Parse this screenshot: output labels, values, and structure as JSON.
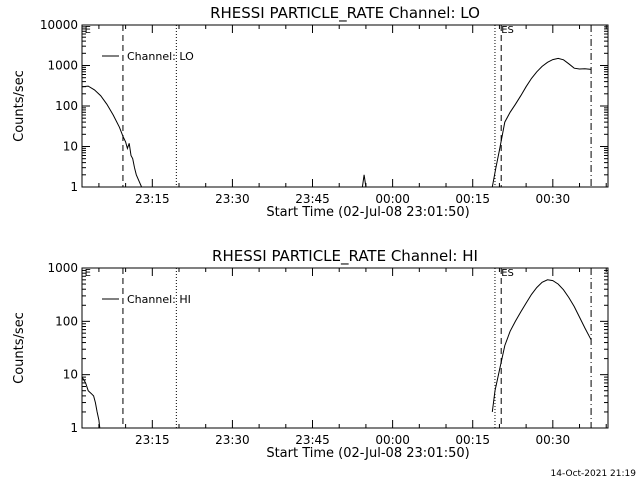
{
  "footer": {
    "timestamp": "14-Oct-2021 21:19"
  },
  "chart_data": [
    {
      "type": "line",
      "title": "RHESSI PARTICLE_RATE Channel: LO",
      "xlabel": "Start Time (02-Jul-08 23:01:50)",
      "ylabel": "Counts/sec",
      "y_scale": "log",
      "ylim": [
        1,
        10000
      ],
      "y_ticks": [
        1,
        10,
        100,
        1000,
        10000
      ],
      "y_tick_labels": [
        "1",
        "10",
        "100",
        "1000",
        "10000"
      ],
      "xlim": [
        "23:01:50",
        "00:40:20"
      ],
      "x_ticks": [
        "23:15",
        "23:30",
        "23:45",
        "00:00",
        "00:15",
        "00:30"
      ],
      "x_tick_labels": [
        "23:15",
        "23:30",
        "23:45",
        "00:00",
        "00:15",
        "00:30"
      ],
      "grid": false,
      "legend": {
        "position": "top-left",
        "entries": [
          "Channel: LO"
        ]
      },
      "markers": [
        {
          "time": "23:02:20",
          "style": "none",
          "label": "E"
        },
        {
          "time": "23:09:30",
          "style": "dashed",
          "label": ""
        },
        {
          "time": "23:19:30",
          "style": "dotted",
          "label": ""
        },
        {
          "time": "00:19:10",
          "style": "dotted",
          "label": ""
        },
        {
          "time": "00:20:20",
          "style": "dashed",
          "label": "ES"
        },
        {
          "time": "00:37:10",
          "style": "dash-dot",
          "label": ""
        }
      ],
      "series": [
        {
          "name": "Channel: LO",
          "points": [
            [
              "23:01:50",
              300
            ],
            [
              "23:03:00",
              310
            ],
            [
              "23:04:10",
              250
            ],
            [
              "23:05:20",
              180
            ],
            [
              "23:06:30",
              110
            ],
            [
              "23:07:40",
              60
            ],
            [
              "23:08:50",
              30
            ],
            [
              "23:09:30",
              18
            ],
            [
              "23:10:00",
              13
            ],
            [
              "23:10:20",
              9
            ],
            [
              "23:10:40",
              12
            ],
            [
              "23:11:00",
              6
            ],
            [
              "23:11:20",
              5
            ],
            [
              "23:11:40",
              3
            ],
            [
              "23:12:00",
              2
            ],
            [
              "23:12:30",
              1.4
            ],
            [
              "23:13:00",
              1
            ]
          ]
        },
        {
          "name": "Channel: LO",
          "points": [
            [
              "23:54:20",
              1
            ],
            [
              "23:54:40",
              2
            ],
            [
              "23:55:00",
              1
            ]
          ]
        },
        {
          "name": "Channel: LO",
          "points": [
            [
              "00:18:40",
              1
            ],
            [
              "00:19:20",
              3
            ],
            [
              "00:20:00",
              8
            ],
            [
              "00:21:00",
              40
            ],
            [
              "00:22:00",
              70
            ],
            [
              "00:23:00",
              110
            ],
            [
              "00:24:00",
              180
            ],
            [
              "00:25:00",
              300
            ],
            [
              "00:26:00",
              480
            ],
            [
              "00:27:00",
              700
            ],
            [
              "00:28:00",
              950
            ],
            [
              "00:29:00",
              1200
            ],
            [
              "00:30:00",
              1400
            ],
            [
              "00:31:00",
              1500
            ],
            [
              "00:32:00",
              1380
            ],
            [
              "00:33:00",
              1100
            ],
            [
              "00:34:00",
              860
            ],
            [
              "00:35:00",
              820
            ],
            [
              "00:36:00",
              830
            ],
            [
              "00:37:10",
              800
            ]
          ]
        }
      ]
    },
    {
      "type": "line",
      "title": "RHESSI PARTICLE_RATE Channel: HI",
      "xlabel": "Start Time (02-Jul-08 23:01:50)",
      "ylabel": "Counts/sec",
      "y_scale": "log",
      "ylim": [
        1,
        1000
      ],
      "y_ticks": [
        1,
        10,
        100,
        1000
      ],
      "y_tick_labels": [
        "1",
        "10",
        "100",
        "1000"
      ],
      "xlim": [
        "23:01:50",
        "00:40:20"
      ],
      "x_ticks": [
        "23:15",
        "23:30",
        "23:45",
        "00:00",
        "00:15",
        "00:30"
      ],
      "x_tick_labels": [
        "23:15",
        "23:30",
        "23:45",
        "00:00",
        "00:15",
        "00:30"
      ],
      "grid": false,
      "legend": {
        "position": "top-left",
        "entries": [
          "Channel: HI"
        ]
      },
      "markers": [
        {
          "time": "23:02:20",
          "style": "none",
          "label": "E"
        },
        {
          "time": "23:09:30",
          "style": "dashed",
          "label": ""
        },
        {
          "time": "23:19:30",
          "style": "dotted",
          "label": ""
        },
        {
          "time": "00:19:10",
          "style": "dotted",
          "label": ""
        },
        {
          "time": "00:20:20",
          "style": "dashed",
          "label": "ES"
        },
        {
          "time": "00:37:10",
          "style": "dash-dot",
          "label": ""
        }
      ],
      "series": [
        {
          "name": "Channel: HI",
          "points": [
            [
              "23:01:50",
              9
            ],
            [
              "23:02:10",
              8
            ],
            [
              "23:02:30",
              7
            ],
            [
              "23:03:00",
              5
            ],
            [
              "23:03:30",
              4.5
            ],
            [
              "23:04:00",
              4
            ],
            [
              "23:04:20",
              3
            ],
            [
              "23:04:40",
              2
            ],
            [
              "23:05:00",
              1.4
            ],
            [
              "23:05:10",
              1
            ]
          ]
        },
        {
          "name": "Channel: HI",
          "points": [
            [
              "00:18:40",
              2
            ],
            [
              "00:19:10",
              5
            ],
            [
              "00:20:00",
              12
            ],
            [
              "00:21:00",
              35
            ],
            [
              "00:22:00",
              65
            ],
            [
              "00:23:00",
              100
            ],
            [
              "00:24:00",
              150
            ],
            [
              "00:25:00",
              220
            ],
            [
              "00:26:00",
              320
            ],
            [
              "00:27:00",
              430
            ],
            [
              "00:28:00",
              540
            ],
            [
              "00:29:00",
              600
            ],
            [
              "00:30:00",
              580
            ],
            [
              "00:31:00",
              500
            ],
            [
              "00:32:00",
              390
            ],
            [
              "00:33:00",
              280
            ],
            [
              "00:34:00",
              190
            ],
            [
              "00:35:00",
              120
            ],
            [
              "00:36:00",
              75
            ],
            [
              "00:37:10",
              45
            ]
          ]
        }
      ]
    }
  ]
}
